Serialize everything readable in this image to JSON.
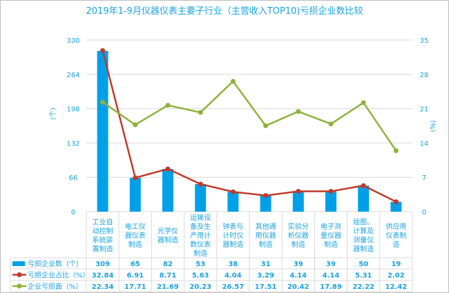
{
  "chart_data": {
    "type": "bar+line",
    "title": "2019年1-9月仪器仪表主要子行业（主营收入TOP10)亏损企业数比较",
    "ylabel_left": "(个)",
    "ylabel_right": "(%)",
    "ylim_left": [
      0,
      330
    ],
    "ylim_right": [
      0,
      35
    ],
    "yticks_left": [
      "0",
      "66",
      "132",
      "198",
      "264",
      "330"
    ],
    "yticks_right": [
      "0",
      "7",
      "14",
      "21",
      "28",
      "35"
    ],
    "categories": [
      [
        "工业自",
        "动控制",
        "系统装",
        "置制造"
      ],
      [
        "电工仪",
        "器仪表",
        "制造"
      ],
      [
        "光学仪",
        "器制造"
      ],
      [
        "运输设",
        "备及生",
        "产用计",
        "数仪表",
        "制造"
      ],
      [
        "钟表与",
        "计时仪",
        "器制造"
      ],
      [
        "其他通",
        "用仪器",
        "制造"
      ],
      [
        "实验分",
        "析仪器",
        "制造"
      ],
      [
        "电子测",
        "量仪器",
        "制造"
      ],
      [
        "绘图、",
        "计算及",
        "测量仪",
        "器制造"
      ],
      [
        "供应用",
        "仪表制",
        "造"
      ]
    ],
    "series": [
      {
        "name": "亏损企业数（个）",
        "type": "bar",
        "axis": "left",
        "color": "#00a0e9",
        "values": [
          309,
          65,
          82,
          53,
          38,
          31,
          39,
          39,
          50,
          19
        ],
        "labels": [
          "309",
          "65",
          "82",
          "53",
          "38",
          "31",
          "39",
          "39",
          "50",
          "19"
        ]
      },
      {
        "name": "亏损企业占比（%）",
        "type": "line",
        "axis": "right",
        "color": "#c0392b",
        "values": [
          32.84,
          6.91,
          8.71,
          5.63,
          4.04,
          3.29,
          4.14,
          4.14,
          5.31,
          2.02
        ],
        "labels": [
          "32.84",
          "6.91",
          "8.71",
          "5.63",
          "4.04",
          "3.29",
          "4.14",
          "4.14",
          "5.31",
          "2.02"
        ]
      },
      {
        "name": "企业亏损面（%）",
        "type": "line",
        "axis": "right",
        "color": "#8db33a",
        "values": [
          22.34,
          17.71,
          21.69,
          20.23,
          26.57,
          17.51,
          20.42,
          17.89,
          22.22,
          12.42
        ],
        "labels": [
          "22.34",
          "17.71",
          "21.69",
          "20.23",
          "26.57",
          "17.51",
          "20.42",
          "17.89",
          "22.22",
          "12.42"
        ]
      }
    ],
    "legend": "data-table-bottom",
    "grid": true
  }
}
